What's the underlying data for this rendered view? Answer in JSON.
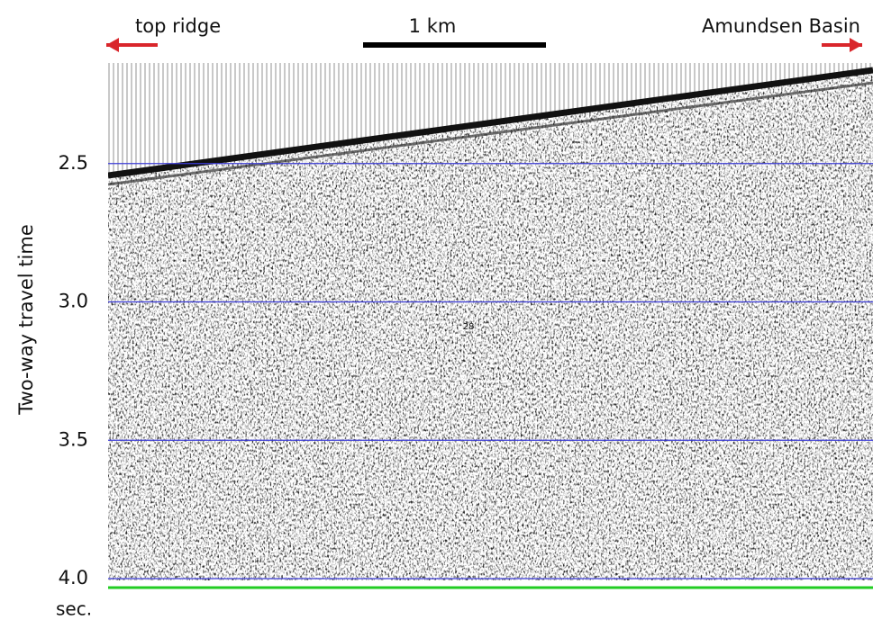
{
  "chart_data": {
    "type": "seismic",
    "ylabel": "Two-way travel time",
    "yunit": "sec.",
    "ylim": [
      2.13,
      4.0
    ],
    "y_inverted": true,
    "yticks": [
      2.5,
      {
        "value": 3,
        "label": "3.0"
      },
      3.5,
      {
        "value": 4,
        "label": "4.0"
      }
    ],
    "grid": true,
    "grid_color": "#3b3bd6",
    "left_label": "top ridge",
    "right_label": "Amundsen Basin",
    "scale_label": "1 km",
    "arrow_color": "#d9262b",
    "annotation": "28"
  }
}
